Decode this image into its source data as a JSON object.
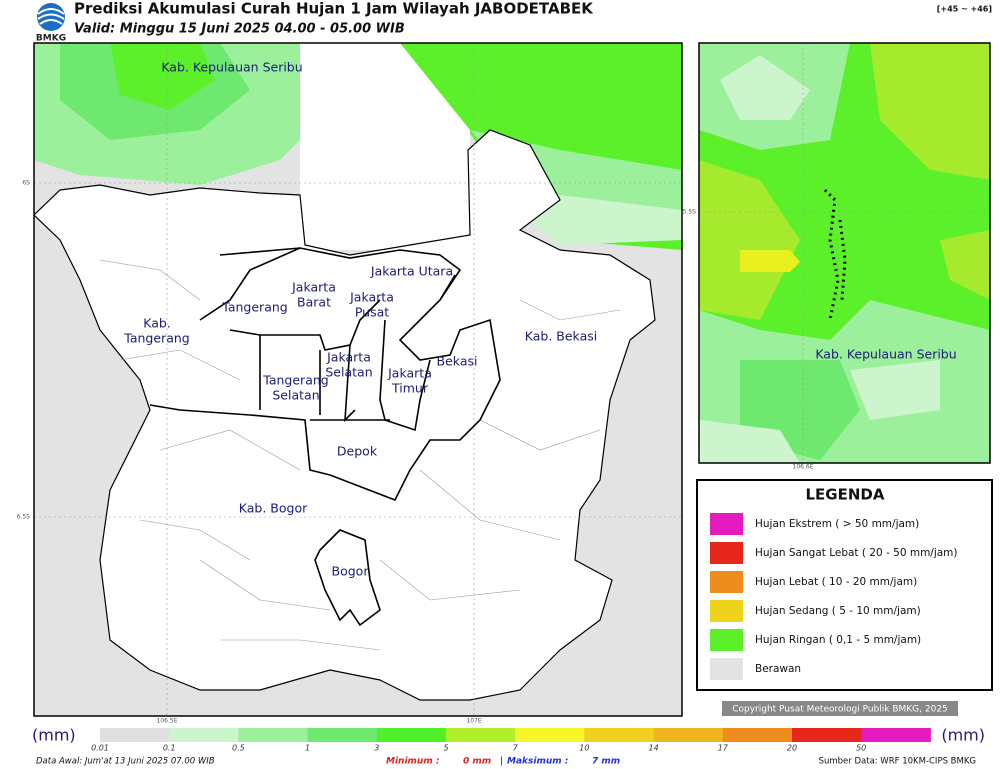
{
  "header": {
    "title": "Prediksi Akumulasi Curah Hujan 1 Jam Wilayah JABODETABEK",
    "valid": "Valid: Minggu 15 Juni 2025 04.00 - 05.00 WIB",
    "logo_text": "BMKG",
    "code": "[+45 ~ +46]"
  },
  "main_map": {
    "labels": [
      [
        "Kab. Kepulauan Seribu"
      ],
      [
        "Jakarta Utara"
      ],
      [
        "Jakarta",
        "Barat"
      ],
      [
        "Jakarta",
        "Pusat"
      ],
      [
        "Tangerang"
      ],
      [
        "Kab.",
        "Tangerang"
      ],
      [
        "Kab. Bekasi"
      ],
      [
        "Jakarta",
        "Selatan"
      ],
      [
        "Bekasi"
      ],
      [
        "Jakarta",
        "Timur"
      ],
      [
        "Tangerang",
        "Selatan"
      ],
      [
        "Depok"
      ],
      [
        "Kab. Bogor"
      ],
      [
        "Bogor"
      ]
    ],
    "lat_ticks": [
      "6S",
      "6.5S"
    ],
    "lon_ticks": [
      "106.5E",
      "107E"
    ]
  },
  "inset_map": {
    "label": "Kab. Kepulauan Seribu",
    "lat_tick": "5.5S",
    "lon_tick": "106.6E"
  },
  "legend": {
    "title": "LEGENDA",
    "items": [
      {
        "label": "Hujan Ekstrem ( > 50 mm/jam)",
        "color": "#e31bc0"
      },
      {
        "label": "Hujan Sangat Lebat ( 20 - 50 mm/jam)",
        "color": "#e8271c"
      },
      {
        "label": "Hujan Lebat ( 10 - 20 mm/jam)",
        "color": "#ef8c1e"
      },
      {
        "label": "Hujan Sedang ( 5 - 10 mm/jam)",
        "color": "#efd21a"
      },
      {
        "label": "Hujan Ringan ( 0,1 - 5 mm/jam)",
        "color": "#5bf02a"
      },
      {
        "label": "Berawan",
        "color": "#e3e3e3"
      }
    ]
  },
  "colorbar": {
    "unit": "(mm)",
    "labels": [
      "0.01",
      "0.1",
      "0.5",
      "1",
      "3",
      "5",
      "7",
      "10",
      "14",
      "17",
      "20",
      "50"
    ],
    "colors": [
      "#e0e0e0",
      "#cdf5cd",
      "#9cf09c",
      "#6ee86e",
      "#4ff02a",
      "#b0f02a",
      "#f5f52a",
      "#f0d21e",
      "#f0b41e",
      "#ef8c1e",
      "#e8271c",
      "#e31bc0"
    ]
  },
  "footer": {
    "data_awal": "Data Awal: Jum'at 13 Juni 2025 07.00 WIB",
    "min_label": "Minimum :",
    "min_value": "0 mm",
    "separator": "|",
    "max_label": "Maksimum :",
    "max_value": "7 mm",
    "source": "Sumber Data: WRF 10KM-CIPS BMKG",
    "copyright": "Copyright Pusat Meteorologi Publik BMKG, 2025"
  }
}
